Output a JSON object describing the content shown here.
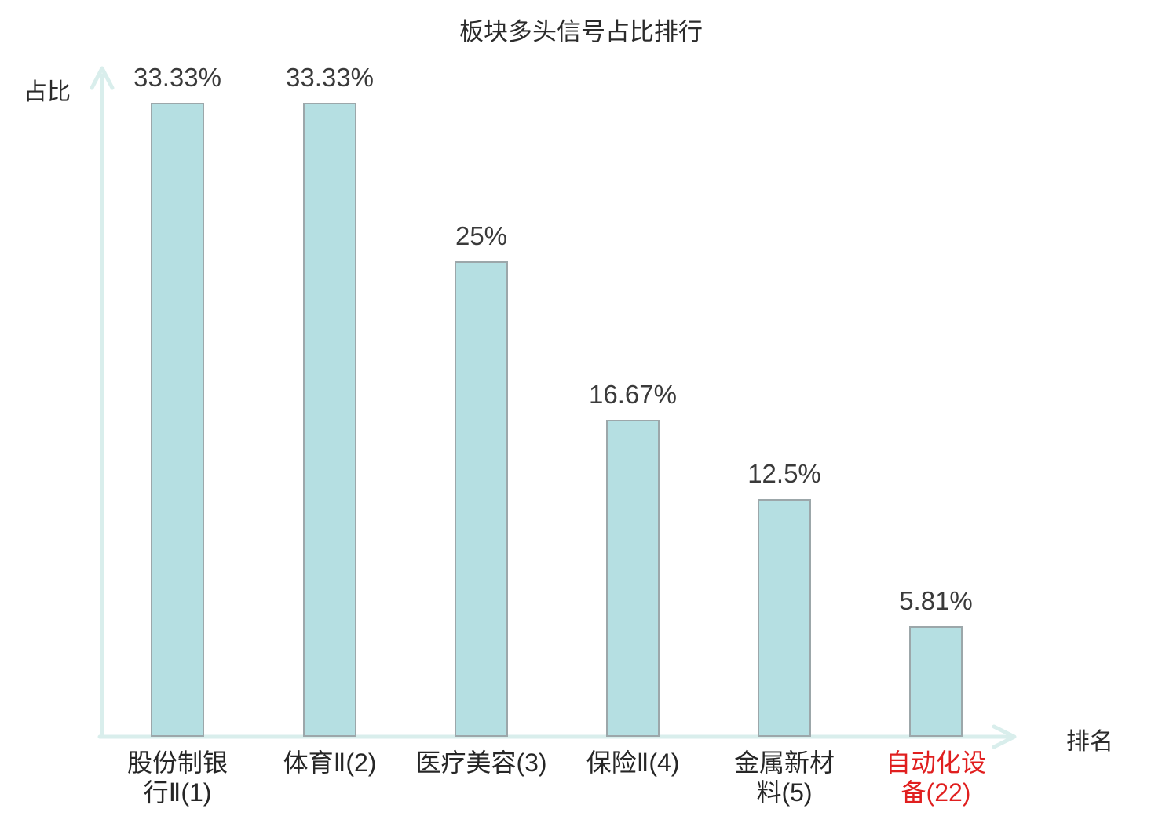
{
  "title": "板块多头信号占比排行",
  "axes": {
    "y_label": "占比",
    "x_label": "排名"
  },
  "colors": {
    "bar_fill": "#b5dfe2",
    "bar_border": "#9ca7aa",
    "axis": "#d9eeec",
    "title_text": "#2b2b2b",
    "value_text": "#3a3a3a",
    "category_text": "#262626",
    "highlight_text": "#e01f1f",
    "background": "#ffffff"
  },
  "chart_data": {
    "type": "bar",
    "title": "板块多头信号占比排行",
    "xlabel": "排名",
    "ylabel": "占比",
    "ylim": [
      0,
      35
    ],
    "grid": false,
    "legend_position": "none",
    "categories": [
      "股份制银行Ⅱ(1)",
      "体育Ⅱ(2)",
      "医疗美容(3)",
      "保险Ⅱ(4)",
      "金属新材料(5)",
      "自动化设备(22)"
    ],
    "category_display": [
      "股份制银\n行Ⅱ(1)",
      "体育Ⅱ(2)",
      "医疗美容(3)",
      "保险Ⅱ(4)",
      "金属新材\n料(5)",
      "自动化设\n备(22)"
    ],
    "values": [
      33.33,
      33.33,
      25,
      16.67,
      12.5,
      5.81
    ],
    "value_labels": [
      "33.33%",
      "33.33%",
      "25%",
      "16.67%",
      "12.5%",
      "5.81%"
    ],
    "highlight_index": 5
  }
}
